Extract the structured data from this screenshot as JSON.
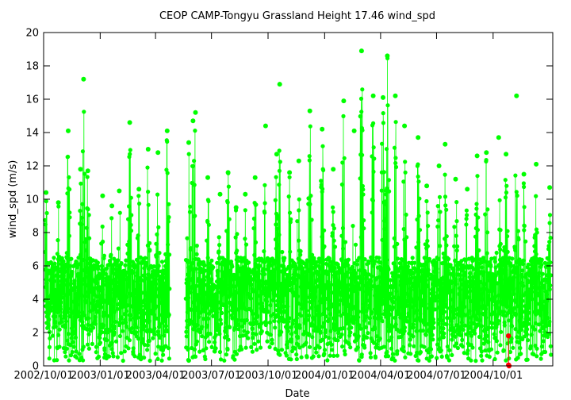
{
  "chart_data": {
    "type": "scatter",
    "title": "CEOP CAMP-Tongyu Grassland Height 17.46 wind_spd",
    "xlabel": "Date",
    "ylabel": "wind_spd (m/s)",
    "xlim": [
      "2002-10-01",
      "2005-01-06"
    ],
    "ylim": [
      0,
      20
    ],
    "y_ticks": [
      0,
      2,
      4,
      6,
      8,
      10,
      12,
      14,
      16,
      18,
      20
    ],
    "x_ticks": [
      "2002/10/01",
      "2003/01/01",
      "2003/04/01",
      "2003/07/01",
      "2003/10/01",
      "2004/01/01",
      "2004/04/01",
      "2004/07/01",
      "2004/10/01"
    ],
    "grid": false,
    "legend": "none",
    "data_gap": [
      "2003-04-24",
      "2003-05-20"
    ],
    "series": [
      {
        "color": "#00ff00",
        "style": "points-connected",
        "daily_peaks": [
          [
            "2002-10-05",
            10.4
          ],
          [
            "2002-10-25",
            9.8
          ],
          [
            "2002-11-10",
            14.1
          ],
          [
            "2002-11-30",
            11.8
          ],
          [
            "2002-12-05",
            17.2
          ],
          [
            "2002-12-12",
            11.7
          ],
          [
            "2003-01-05",
            10.2
          ],
          [
            "2003-01-20",
            9.6
          ],
          [
            "2003-02-01",
            10.5
          ],
          [
            "2003-02-18",
            14.6
          ],
          [
            "2003-03-05",
            10.6
          ],
          [
            "2003-03-20",
            13.0
          ],
          [
            "2003-04-05",
            12.8
          ],
          [
            "2003-04-20",
            14.1
          ],
          [
            "2003-05-25",
            13.4
          ],
          [
            "2003-06-01",
            14.7
          ],
          [
            "2003-06-05",
            15.2
          ],
          [
            "2003-06-25",
            11.3
          ],
          [
            "2003-07-15",
            10.3
          ],
          [
            "2003-07-28",
            11.6
          ],
          [
            "2003-08-10",
            9.5
          ],
          [
            "2003-08-25",
            10.3
          ],
          [
            "2003-09-10",
            11.3
          ],
          [
            "2003-09-27",
            14.4
          ],
          [
            "2003-10-15",
            12.7
          ],
          [
            "2003-10-20",
            16.9
          ],
          [
            "2003-11-05",
            11.6
          ],
          [
            "2003-11-20",
            12.3
          ],
          [
            "2003-12-08",
            15.3
          ],
          [
            "2003-12-28",
            14.2
          ],
          [
            "2004-01-15",
            11.8
          ],
          [
            "2004-02-01",
            15.9
          ],
          [
            "2004-02-18",
            14.1
          ],
          [
            "2004-03-01",
            18.9
          ],
          [
            "2004-03-20",
            16.2
          ],
          [
            "2004-04-05",
            16.1
          ],
          [
            "2004-04-12",
            18.6
          ],
          [
            "2004-04-25",
            16.2
          ],
          [
            "2004-05-10",
            14.4
          ],
          [
            "2004-06-01",
            13.7
          ],
          [
            "2004-06-15",
            10.8
          ],
          [
            "2004-07-05",
            12.0
          ],
          [
            "2004-07-15",
            13.3
          ],
          [
            "2004-08-01",
            11.2
          ],
          [
            "2004-08-20",
            10.6
          ],
          [
            "2004-09-05",
            12.6
          ],
          [
            "2004-09-20",
            12.8
          ],
          [
            "2004-10-10",
            13.7
          ],
          [
            "2004-10-22",
            12.7
          ],
          [
            "2004-11-08",
            16.2
          ],
          [
            "2004-11-20",
            11.5
          ],
          [
            "2004-12-10",
            12.1
          ],
          [
            "2005-01-01",
            10.7
          ]
        ],
        "baseline_range": [
          0.3,
          6.5
        ]
      },
      {
        "color": "#ff0000",
        "style": "points",
        "points": [
          [
            "2004-10-26",
            1.8
          ],
          [
            "2004-10-26",
            0.05
          ],
          [
            "2004-10-27",
            0.0
          ]
        ]
      }
    ]
  }
}
